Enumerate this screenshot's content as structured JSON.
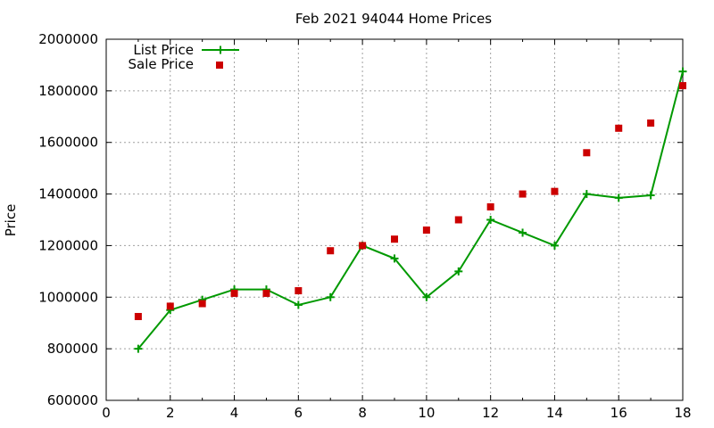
{
  "chart_data": {
    "type": "line",
    "title": "Feb 2021 94044 Home Prices",
    "xlabel": "",
    "ylabel": "Price",
    "xlim": [
      0,
      18
    ],
    "ylim": [
      600000,
      2000000
    ],
    "x_ticks": [
      "0",
      "2",
      "4",
      "6",
      "8",
      "10",
      "12",
      "14",
      "16",
      "18"
    ],
    "y_ticks": [
      "600000",
      "800000",
      "1000000",
      "1200000",
      "1400000",
      "1600000",
      "1800000",
      "2000000"
    ],
    "grid": true,
    "legend_position": "top-left",
    "series": [
      {
        "name": "List Price",
        "style": "linespoints",
        "marker": "plus",
        "color": "#009900",
        "x": [
          1,
          2,
          3,
          4,
          5,
          6,
          7,
          8,
          9,
          10,
          11,
          12,
          13,
          14,
          15,
          16,
          17,
          18
        ],
        "y": [
          800000,
          950000,
          990000,
          1030000,
          1030000,
          970000,
          1000000,
          1200000,
          1150000,
          1000000,
          1100000,
          1300000,
          1250000,
          1200000,
          1400000,
          1385000,
          1395000,
          1875000
        ]
      },
      {
        "name": "Sale Price",
        "style": "points",
        "marker": "square",
        "color": "#cc0000",
        "x": [
          1,
          2,
          3,
          4,
          5,
          6,
          7,
          8,
          9,
          10,
          11,
          12,
          13,
          14,
          15,
          16,
          17,
          18
        ],
        "y": [
          925000,
          965000,
          975000,
          1015000,
          1015000,
          1025000,
          1180000,
          1200000,
          1225000,
          1260000,
          1300000,
          1350000,
          1400000,
          1410000,
          1560000,
          1655000,
          1675000,
          1820000
        ]
      }
    ]
  }
}
